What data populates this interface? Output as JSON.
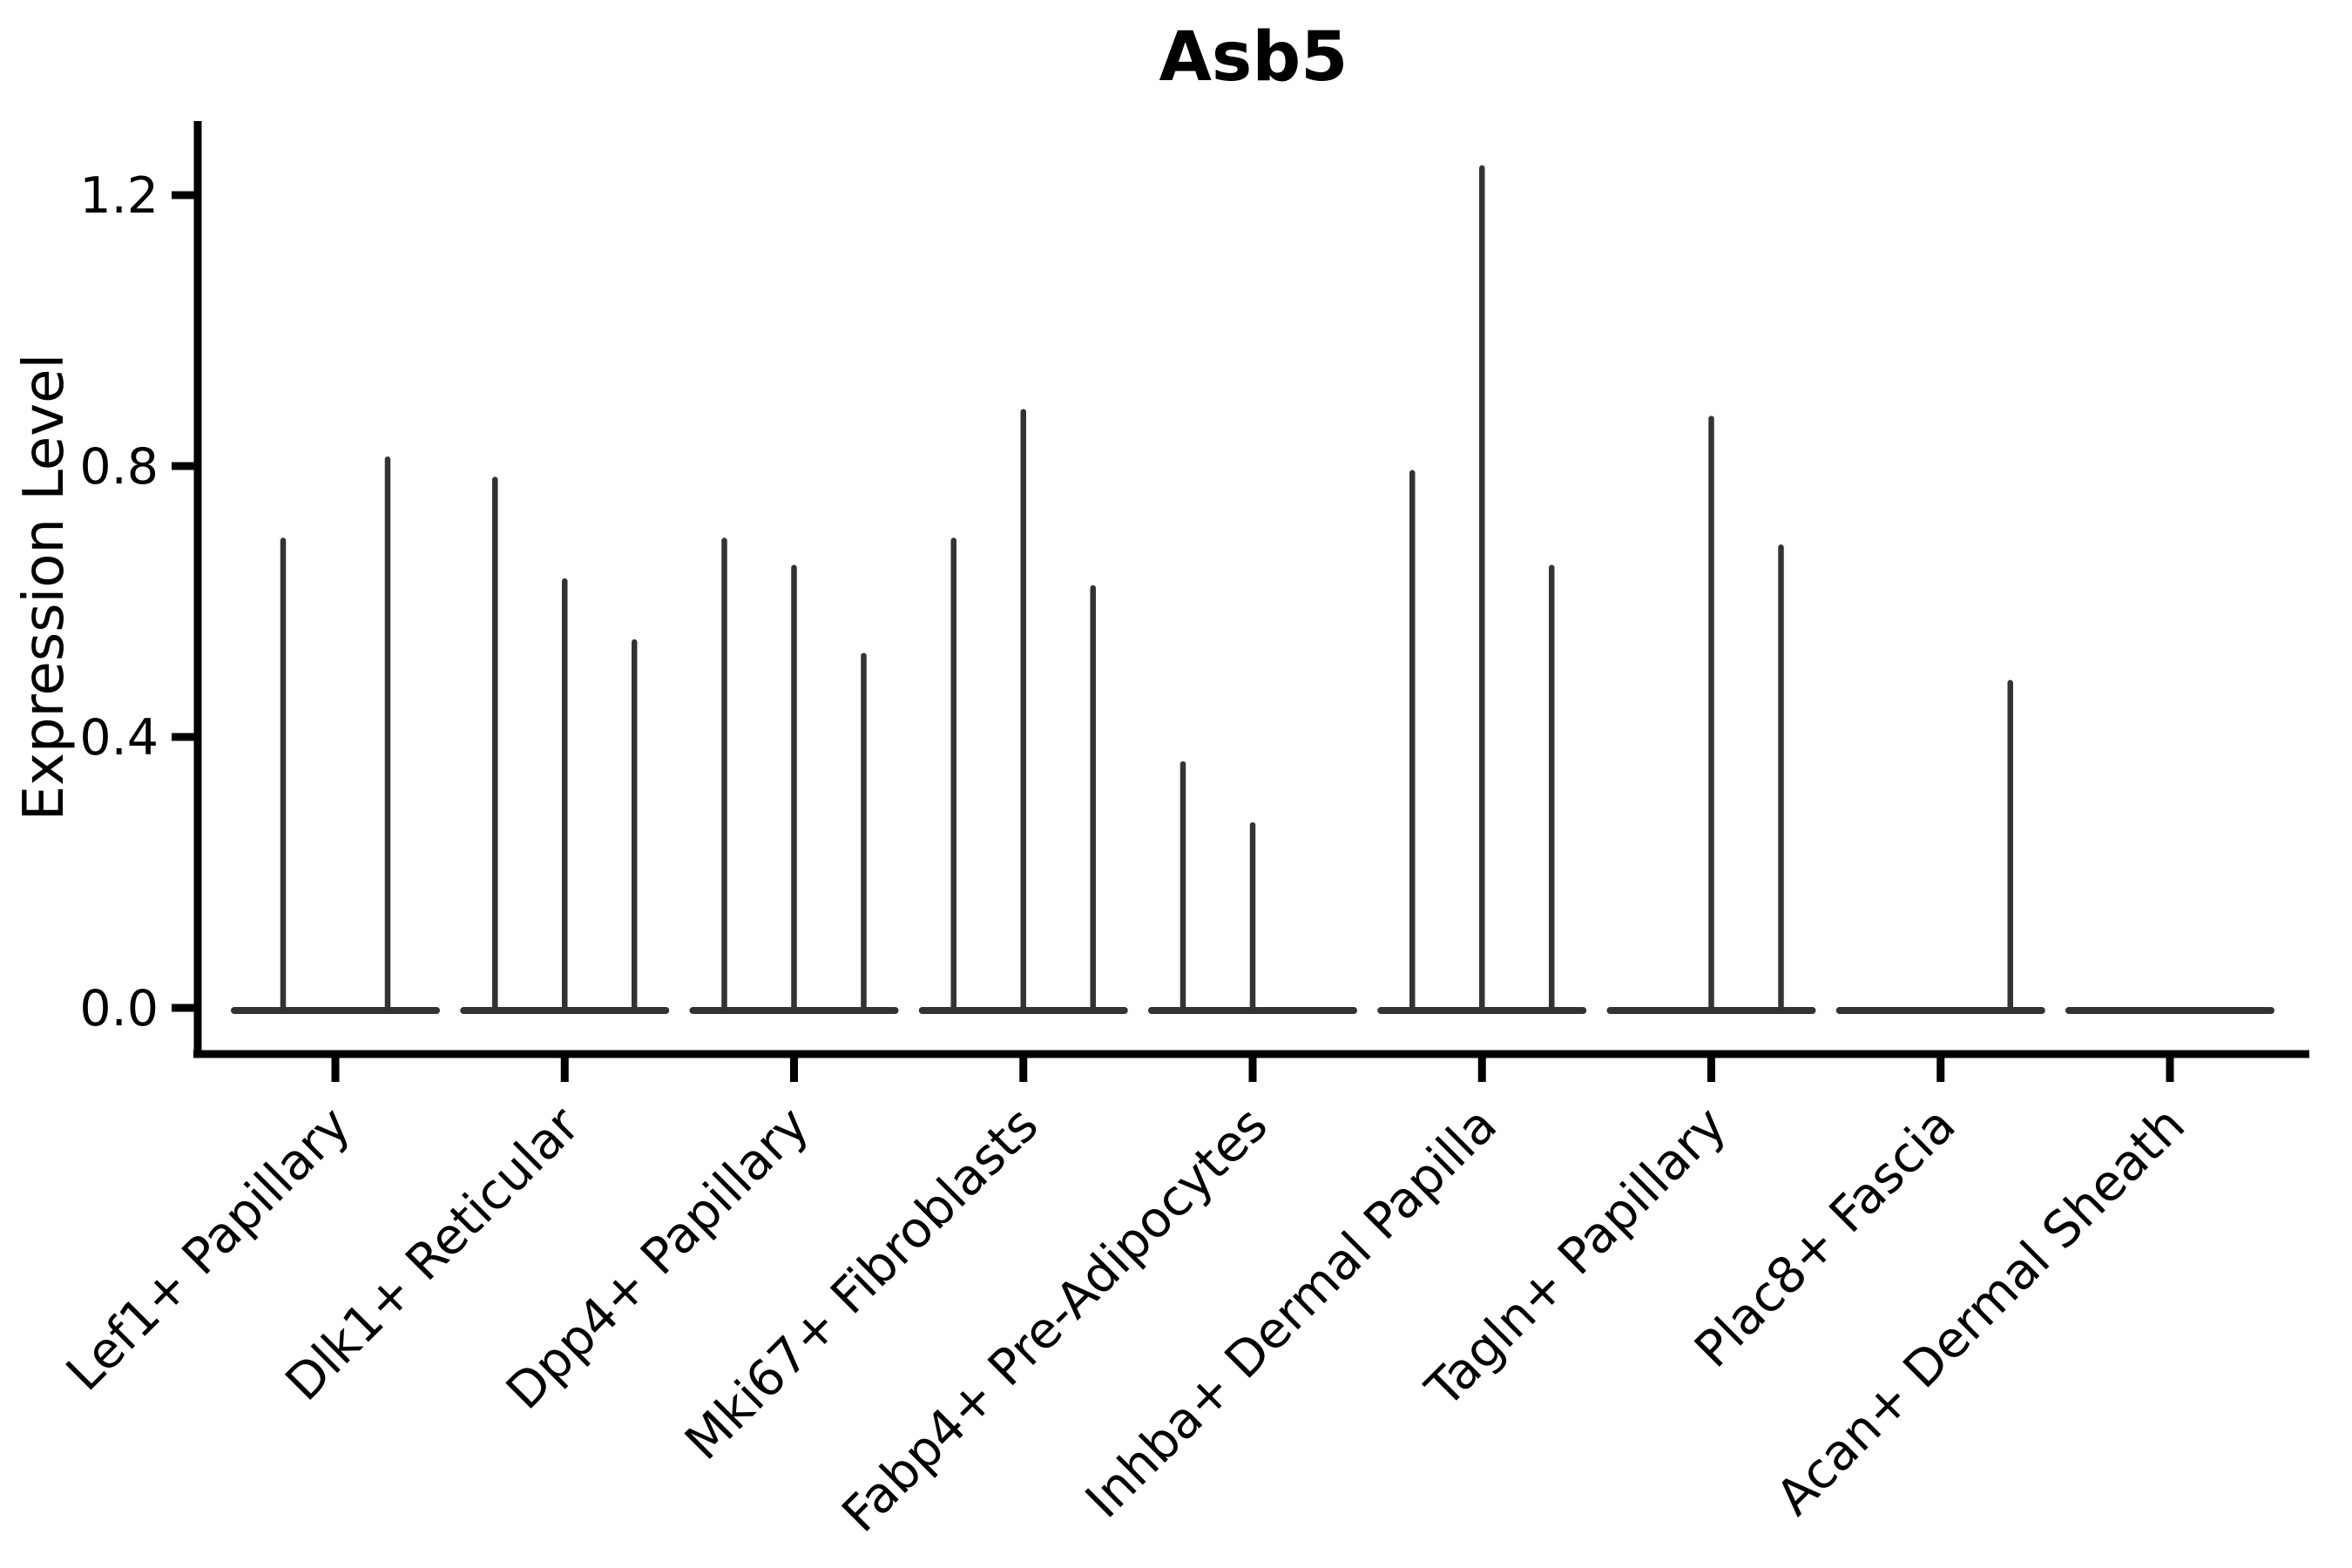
{
  "figure": {
    "background_color": "#ffffff",
    "violin_color": "#333333",
    "axis_color": "#000000",
    "text_color": "#000000"
  },
  "chart_data": {
    "type": "violin",
    "title": "Asb5",
    "xlabel": "",
    "ylabel": "Expression Level",
    "ylim": [
      0.0,
      1.32
    ],
    "yticks": [
      "0.0",
      "0.4",
      "0.8",
      "1.2"
    ],
    "ytick_values": [
      0.0,
      0.4,
      0.8,
      1.2
    ],
    "grid": false,
    "legend": null,
    "x_tick_label_rotation_deg": 45,
    "categories": [
      "Lef1+ Papillary",
      "Dlk1+ Reticular",
      "Dpp4+ Papillary",
      "Mki67+ Fibroblasts",
      "Fabp4+ Pre-Adipocytes",
      "Inhba+ Dermal Papilla",
      "Tagln+ Papillary",
      "Plac8+ Fascia",
      "Acan+ Dermal Sheath"
    ],
    "description": "Expression-level violin plot where nearly all cells are at 0, so each violin renders as a flat baseline at y=0 with a thin vertical spike reaching the maximum expression value. Each category holds up to 3 narrow violins side by side.",
    "violin_groups": [
      {
        "category": "Lef1+ Papillary",
        "spikes": [
          {
            "slot_offset": -60,
            "max_value": 0.69
          },
          {
            "slot_offset": 60,
            "max_value": 0.81
          }
        ]
      },
      {
        "category": "Dlk1+ Reticular",
        "spikes": [
          {
            "slot_offset": -80,
            "max_value": 0.78
          },
          {
            "slot_offset": 0,
            "max_value": 0.63
          },
          {
            "slot_offset": 80,
            "max_value": 0.54
          }
        ]
      },
      {
        "category": "Dpp4+ Papillary",
        "spikes": [
          {
            "slot_offset": -80,
            "max_value": 0.69
          },
          {
            "slot_offset": 0,
            "max_value": 0.65
          },
          {
            "slot_offset": 80,
            "max_value": 0.52
          }
        ]
      },
      {
        "category": "Mki67+ Fibroblasts",
        "spikes": [
          {
            "slot_offset": -80,
            "max_value": 0.69
          },
          {
            "slot_offset": 0,
            "max_value": 0.88
          },
          {
            "slot_offset": 80,
            "max_value": 0.62
          }
        ]
      },
      {
        "category": "Fabp4+ Pre-Adipocytes",
        "spikes": [
          {
            "slot_offset": -80,
            "max_value": 0.36
          },
          {
            "slot_offset": 0,
            "max_value": 0.27
          },
          {
            "slot_offset": 80,
            "max_value": 0.0
          }
        ]
      },
      {
        "category": "Inhba+ Dermal Papilla",
        "spikes": [
          {
            "slot_offset": -80,
            "max_value": 0.79
          },
          {
            "slot_offset": 0,
            "max_value": 1.24
          },
          {
            "slot_offset": 80,
            "max_value": 0.65
          }
        ]
      },
      {
        "category": "Tagln+ Papillary",
        "spikes": [
          {
            "slot_offset": -80,
            "max_value": 0.0
          },
          {
            "slot_offset": 0,
            "max_value": 0.87
          },
          {
            "slot_offset": 80,
            "max_value": 0.68
          }
        ]
      },
      {
        "category": "Plac8+ Fascia",
        "spikes": [
          {
            "slot_offset": -80,
            "max_value": 0.0
          },
          {
            "slot_offset": 0,
            "max_value": 0.0
          },
          {
            "slot_offset": 80,
            "max_value": 0.48
          }
        ]
      },
      {
        "category": "Acan+ Dermal Sheath",
        "spikes": [
          {
            "slot_offset": -80,
            "max_value": 0.0
          },
          {
            "slot_offset": 0,
            "max_value": 0.0
          },
          {
            "slot_offset": 80,
            "max_value": 0.0
          }
        ]
      }
    ]
  }
}
